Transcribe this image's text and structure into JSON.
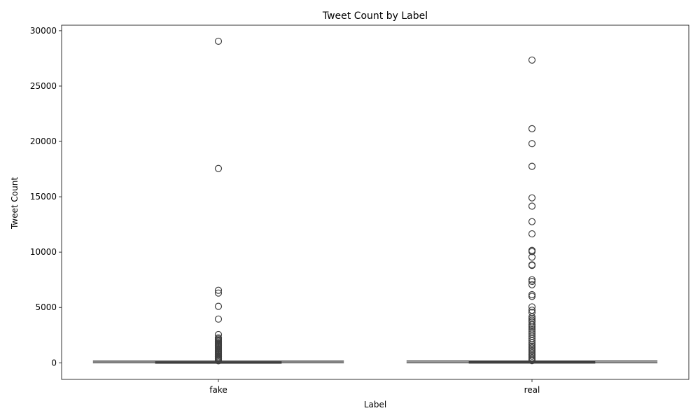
{
  "chart_data": {
    "type": "box",
    "title": "Tweet Count by Label",
    "xlabel": "Label",
    "ylabel": "Tweet Count",
    "categories": [
      "fake",
      "real"
    ],
    "ylim": [
      -1500,
      30500
    ],
    "yticks": [
      0,
      5000,
      10000,
      15000,
      20000,
      25000,
      30000
    ],
    "grid": false,
    "box_color": "#3f3f3f",
    "boxes": [
      {
        "label": "fake",
        "q1": 0,
        "median": 10,
        "q3": 60,
        "whisker_low": 0,
        "whisker_high": 150,
        "outliers": [
          29050,
          17550,
          6550,
          6300,
          5100,
          3950,
          2550,
          2250,
          2150,
          2050,
          1950,
          1850,
          1750,
          1650,
          1550,
          1450,
          1350,
          1250,
          1150,
          1050,
          950,
          850,
          750,
          650,
          550,
          450,
          350,
          250,
          180
        ]
      },
      {
        "label": "real",
        "q1": 10,
        "median": 30,
        "q3": 70,
        "whisker_low": 0,
        "whisker_high": 160,
        "outliers": [
          27350,
          21150,
          19800,
          17750,
          14900,
          14150,
          12750,
          11650,
          10150,
          10050,
          9550,
          8850,
          8800,
          7500,
          7350,
          7050,
          6150,
          6000,
          5050,
          4750,
          4550,
          4150,
          4000,
          3850,
          3700,
          3450,
          3300,
          3150,
          3000,
          2800,
          2600,
          2400,
          2200,
          2000,
          1800,
          1650,
          1500,
          1350,
          1200,
          1050,
          900,
          750,
          600,
          450,
          300,
          200
        ]
      }
    ]
  }
}
